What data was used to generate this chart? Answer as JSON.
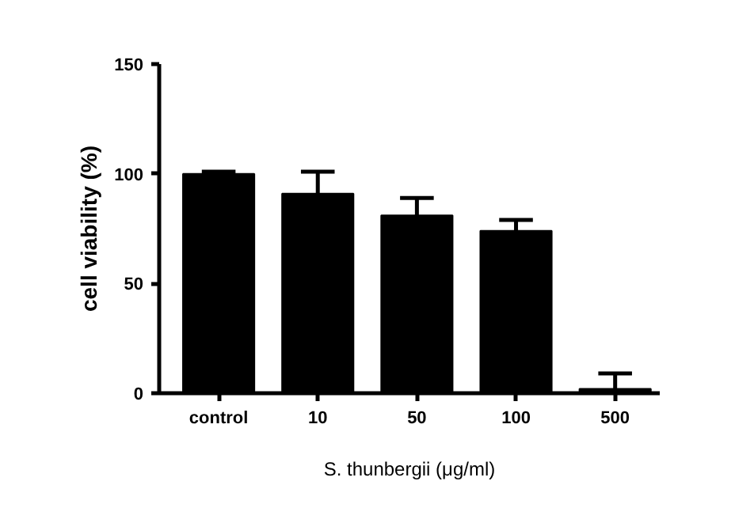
{
  "chart_data": {
    "type": "bar",
    "xlabel": "S. thunbergii (μg/ml)",
    "ylabel": "cell viability (%)",
    "categories": [
      "control",
      "10",
      "50",
      "100",
      "500"
    ],
    "values": [
      100,
      91,
      81,
      74,
      2
    ],
    "color": "#000000",
    "errors": [
      [
        100,
        101
      ],
      [
        91,
        101
      ],
      [
        81,
        89
      ],
      [
        74,
        79
      ],
      [
        2,
        9
      ]
    ],
    "ylim": [
      0,
      150
    ],
    "yticks": [
      0,
      50,
      100,
      150
    ],
    "grid": false
  }
}
